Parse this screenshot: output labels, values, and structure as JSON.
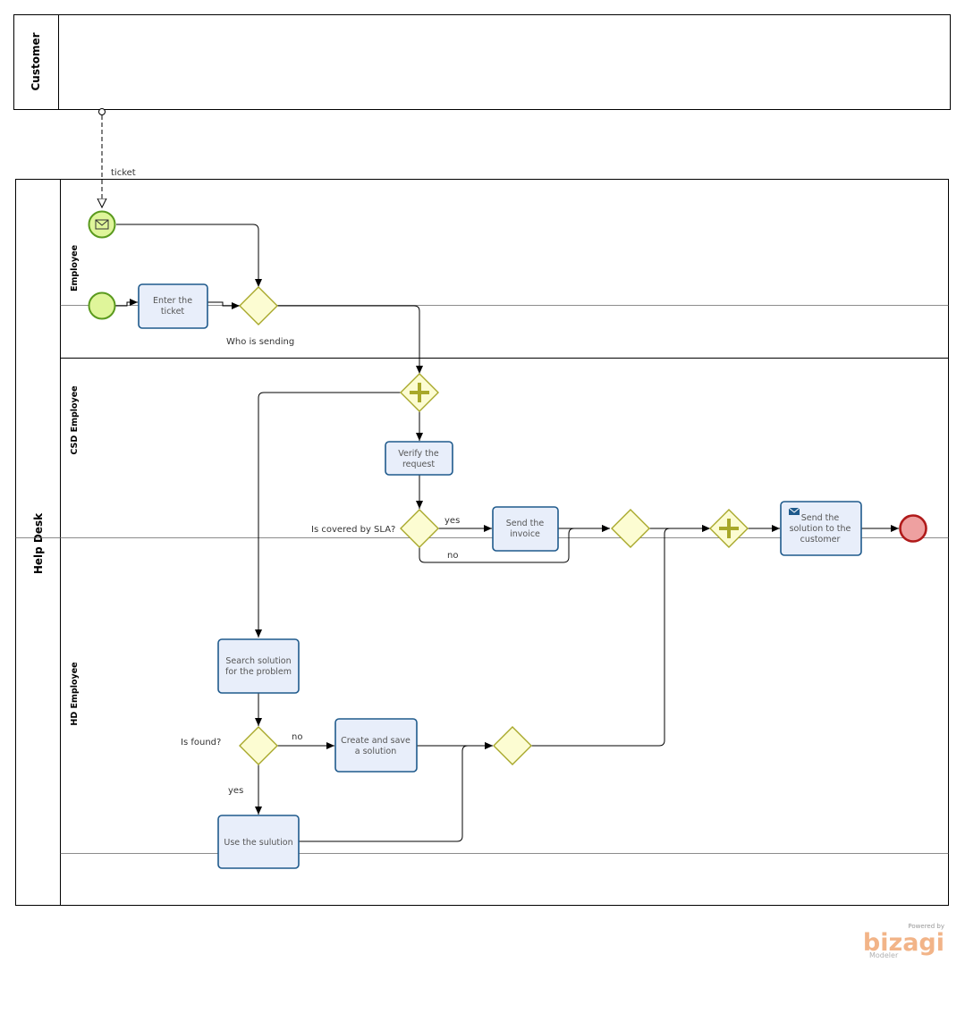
{
  "pools": {
    "customer": "Customer",
    "helpdesk": "Help Desk"
  },
  "lanes": {
    "employee": "Employee",
    "csd": "CSD Employee",
    "hd": "HD Employee"
  },
  "tasks": {
    "enter_ticket": [
      "Enter the",
      "ticket"
    ],
    "verify_request": [
      "Verify the",
      "request"
    ],
    "send_invoice": [
      "Send the",
      "invoice"
    ],
    "send_solution": [
      "Send the",
      "solution to the",
      "customer"
    ],
    "search_solution": [
      "Search solution",
      "for the problem"
    ],
    "create_solution": [
      "Create and save",
      "a solution"
    ],
    "use_solution": [
      "Use the sulution"
    ]
  },
  "labels": {
    "ticket": "ticket",
    "who_is_sending": "Who is sending",
    "is_covered": "Is covered by SLA?",
    "yes1": "yes",
    "no1": "no",
    "is_found": "Is found?",
    "no2": "no",
    "yes2": "yes"
  },
  "branding": {
    "powered": "Powered by",
    "name": "bizagi",
    "product": "Modeler"
  },
  "colors": {
    "task_fill": "#e8eefa",
    "task_stroke": "#1f5a8c",
    "gateway_fill": "#fcfcd2",
    "gateway_stroke": "#a8a82a",
    "start_fill": "#dff59a",
    "start_stroke": "#5a9a1e",
    "end_fill": "#eea0a0",
    "end_stroke": "#b01a1a"
  }
}
